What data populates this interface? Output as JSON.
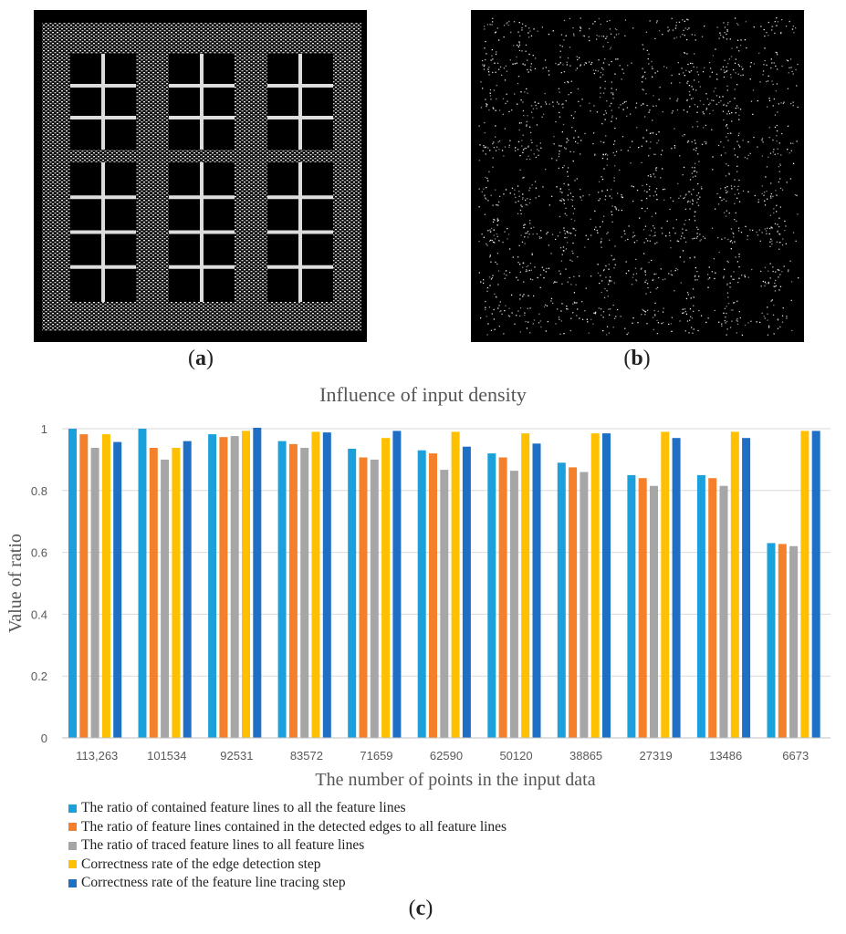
{
  "captions": {
    "a": "a",
    "b": "b",
    "c": "c"
  },
  "panels": {
    "a": "window-point-cloud",
    "b": "detected-edge-points"
  },
  "chart_data": {
    "type": "bar",
    "title": "Influence of input density",
    "xlabel": "The number of points in the input data",
    "ylabel": "Value of ratio",
    "ylim": [
      0,
      1
    ],
    "yticks": [
      0,
      0.2,
      0.4,
      0.6,
      0.8,
      1
    ],
    "ytick_labels": [
      "0",
      "0.2",
      "0.4",
      "0.6",
      "0.8",
      "1"
    ],
    "grid": true,
    "legend_position": "bottom",
    "categories": [
      "113,263",
      "101534",
      "92531",
      "83572",
      "71659",
      "62590",
      "50120",
      "38865",
      "27319",
      "13486",
      "6673"
    ],
    "series": [
      {
        "name": "The ratio of contained feature lines to all the feature lines",
        "color": "#1ca0db",
        "values": [
          1.0,
          1.0,
          0.982,
          0.96,
          0.935,
          0.93,
          0.92,
          0.89,
          0.85,
          0.85,
          0.63
        ]
      },
      {
        "name": "The ratio of feature lines contained in the detected edges to all feature lines",
        "color": "#f5802b",
        "values": [
          0.982,
          0.938,
          0.973,
          0.95,
          0.907,
          0.92,
          0.907,
          0.875,
          0.84,
          0.84,
          0.627
        ]
      },
      {
        "name": "The ratio of traced feature lines to all feature lines",
        "color": "#a6a6a6",
        "values": [
          0.938,
          0.9,
          0.976,
          0.938,
          0.9,
          0.867,
          0.864,
          0.86,
          0.815,
          0.815,
          0.62
        ]
      },
      {
        "name": "Correctness rate of the edge detection step",
        "color": "#fec000",
        "values": [
          0.982,
          0.938,
          0.993,
          0.99,
          0.97,
          0.99,
          0.985,
          0.985,
          0.99,
          0.99,
          0.993
        ]
      },
      {
        "name": "Correctness rate of the feature line tracing step",
        "color": "#1f6fc5",
        "values": [
          0.957,
          0.96,
          1.003,
          0.988,
          0.993,
          0.942,
          0.952,
          0.985,
          0.97,
          0.97,
          0.993
        ]
      }
    ]
  }
}
